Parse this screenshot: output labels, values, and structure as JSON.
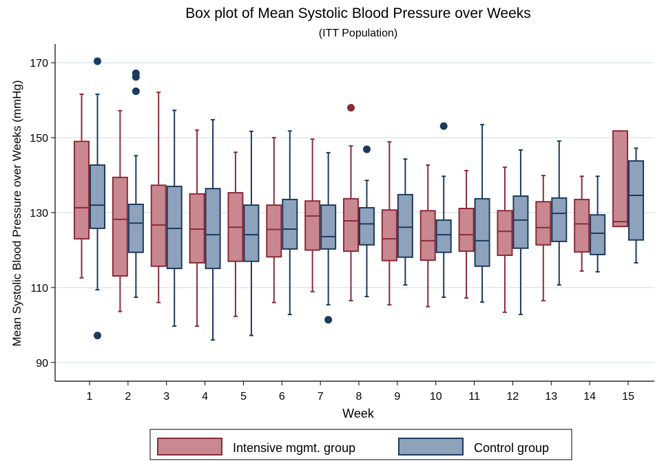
{
  "chart_data": {
    "type": "box",
    "title": "Box plot of Mean Systolic Blood Pressure over Weeks",
    "subtitle": "(ITT Population)",
    "x_label": "Week",
    "y_label": "Mean Systolic Blood Pressure over Weeks (mmHg)",
    "categories": [
      "1",
      "2",
      "3",
      "4",
      "5",
      "6",
      "7",
      "8",
      "9",
      "10",
      "11",
      "12",
      "13",
      "14",
      "15"
    ],
    "ylim": [
      85,
      175
    ],
    "yticks": [
      90,
      110,
      130,
      150,
      170
    ],
    "grid": true,
    "legend": "bottom",
    "series": [
      {
        "name": "Intensive mgmt. group",
        "color": "#c98890",
        "edge": "#8b2a38",
        "min": [
          112.6,
          103.6,
          106.0,
          99.7,
          102.3,
          106.0,
          108.9,
          106.5,
          105.4,
          104.9,
          107.2,
          103.4,
          106.5,
          114.4,
          126.3
        ],
        "q1": [
          123.0,
          113.1,
          115.7,
          116.6,
          117.0,
          118.2,
          120.0,
          119.7,
          117.2,
          117.3,
          119.7,
          118.6,
          121.4,
          119.5,
          126.3
        ],
        "median": [
          131.3,
          128.2,
          126.7,
          125.6,
          126.1,
          125.5,
          129.1,
          127.8,
          123.0,
          122.5,
          124.1,
          125.0,
          126.0,
          127.0,
          127.6
        ],
        "q3": [
          149.0,
          139.4,
          137.3,
          135.0,
          135.3,
          132.0,
          133.1,
          133.7,
          130.7,
          130.5,
          131.1,
          130.5,
          132.9,
          133.5,
          151.8
        ],
        "max": [
          161.6,
          157.2,
          162.1,
          152.0,
          146.1,
          150.0,
          149.6,
          147.8,
          148.9,
          142.7,
          141.2,
          142.1,
          139.9,
          139.7,
          151.8
        ],
        "outliers": [
          [],
          [],
          [],
          [],
          [],
          [],
          [],
          [
            158.0
          ],
          [],
          [],
          [],
          [],
          [],
          [],
          []
        ]
      },
      {
        "name": "Control group",
        "color": "#8ea3bb",
        "edge": "#1c3a5e",
        "min": [
          109.4,
          107.4,
          99.7,
          96.0,
          97.2,
          102.8,
          105.4,
          107.6,
          110.7,
          107.4,
          106.1,
          102.8,
          110.7,
          114.2,
          116.6
        ],
        "q1": [
          125.8,
          119.4,
          115.1,
          115.1,
          117.0,
          120.3,
          120.3,
          121.4,
          118.1,
          119.4,
          115.7,
          120.5,
          122.3,
          118.8,
          122.7
        ],
        "median": [
          132.0,
          127.2,
          125.8,
          124.1,
          124.1,
          125.6,
          123.6,
          127.0,
          126.1,
          124.1,
          122.5,
          128.0,
          129.8,
          124.5,
          134.6
        ],
        "q3": [
          142.7,
          132.2,
          137.0,
          136.4,
          132.0,
          133.5,
          132.0,
          131.3,
          134.8,
          128.0,
          133.7,
          134.4,
          133.9,
          129.4,
          143.8
        ],
        "max": [
          161.6,
          145.2,
          157.3,
          154.8,
          151.7,
          151.8,
          146.0,
          138.6,
          144.3,
          139.7,
          153.5,
          146.7,
          149.1,
          139.7,
          147.2
        ],
        "outliers": [
          [
            170.4,
            97.2
          ],
          [
            167.2,
            166.2,
            162.4
          ],
          [],
          [],
          [],
          [],
          [
            101.4
          ],
          [
            146.9
          ],
          [],
          [
            153.1
          ],
          [],
          [],
          [],
          [],
          []
        ]
      }
    ]
  }
}
